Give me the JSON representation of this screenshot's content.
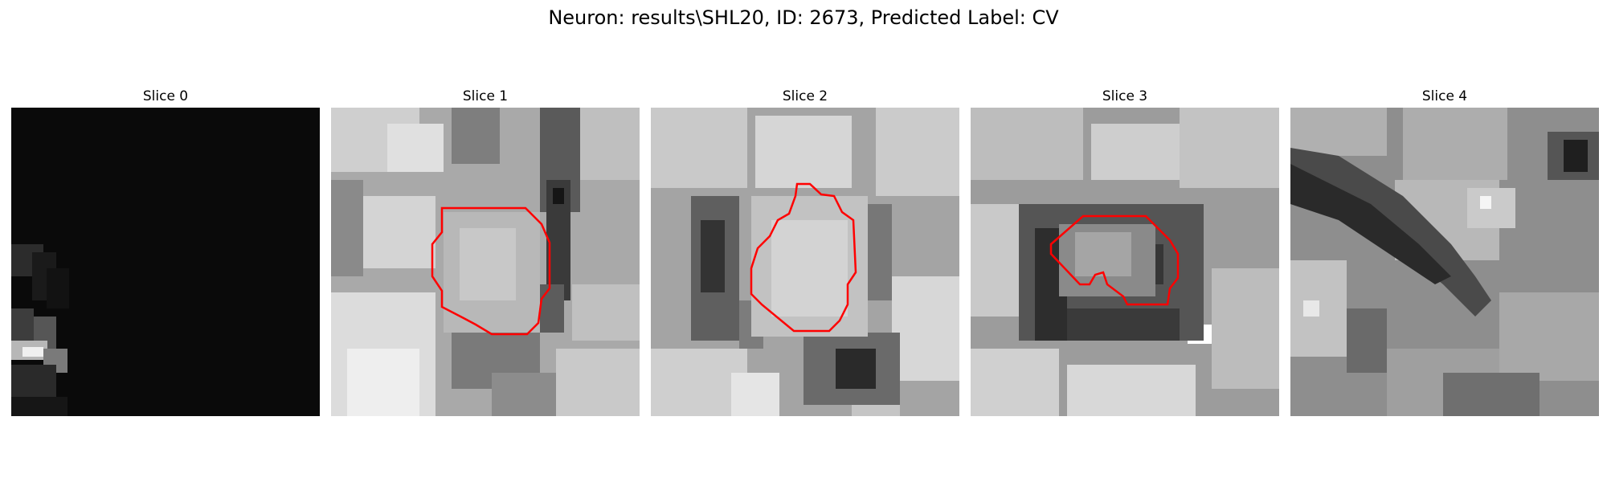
{
  "figure": {
    "title": "Neuron: results\\SHL20, ID: 2673, Predicted Label: CV"
  },
  "panels": [
    {
      "title": "Slice 0",
      "base": "#0a0a0a",
      "has_contour": false
    },
    {
      "title": "Slice 1",
      "base": "#a9a9a9",
      "has_contour": true
    },
    {
      "title": "Slice 2",
      "base": "#a4a4a4",
      "has_contour": true
    },
    {
      "title": "Slice 3",
      "base": "#9c9c9c",
      "has_contour": true
    },
    {
      "title": "Slice 4",
      "base": "#8e8e8e",
      "has_contour": false
    }
  ],
  "colors": {
    "contour": "#ff0000",
    "background": "#ffffff"
  }
}
